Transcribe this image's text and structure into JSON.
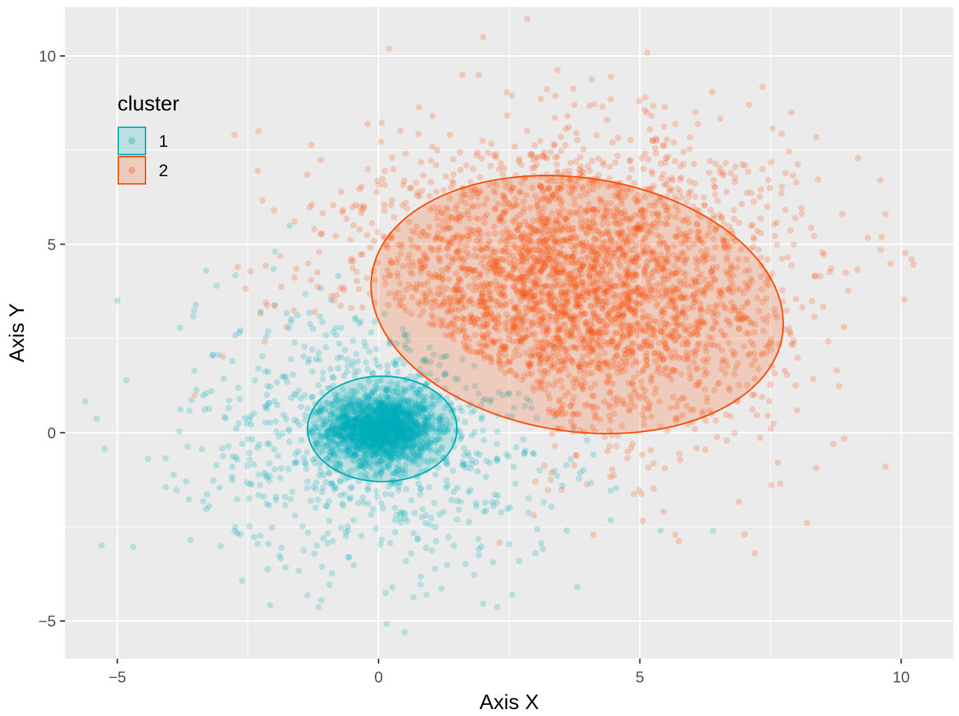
{
  "chart_data": {
    "type": "scatter",
    "title": "",
    "xlabel": "Axis X",
    "ylabel": "Axis Y",
    "xlim": [
      -6,
      11
    ],
    "ylim": [
      -6,
      11.3
    ],
    "x_ticks": [
      -5,
      0,
      5,
      10
    ],
    "y_ticks": [
      -5,
      0,
      5,
      10
    ],
    "x_tick_labels": [
      "−5",
      "0",
      "5",
      "10"
    ],
    "y_tick_labels": [
      "−5",
      "0",
      "5",
      "10"
    ],
    "grid": true,
    "legend": {
      "title": "cluster",
      "position": "top-left-inside"
    },
    "series": [
      {
        "name": "1",
        "color": "#00AFBB",
        "center": [
          0,
          0
        ],
        "approx_point_count": 2600,
        "ellipse": {
          "center": [
            0.07,
            0.1
          ],
          "semi_axis_x": 1.43,
          "semi_axis_y": 1.4,
          "rotation_deg": 0
        },
        "sample_points": [
          [
            -5.0,
            3.5
          ],
          [
            -3.5,
            3.4
          ],
          [
            -3.3,
            4.3
          ],
          [
            -3.1,
            3.9
          ],
          [
            -2.8,
            1.9
          ],
          [
            -3.2,
            1.1
          ],
          [
            -2.3,
            1.7
          ],
          [
            -1.7,
            5.5
          ],
          [
            -2.2,
            -1.7
          ],
          [
            -1.6,
            -2.2
          ],
          [
            0.5,
            -5.3
          ],
          [
            0.9,
            -2.4
          ],
          [
            3.0,
            -3.2
          ],
          [
            3.8,
            -4.1
          ],
          [
            6.4,
            -2.6
          ],
          [
            3.6,
            -2.6
          ],
          [
            5.4,
            -2.6
          ]
        ]
      },
      {
        "name": "2",
        "color": "#FC4E07",
        "center": [
          3.6,
          3.5
        ],
        "approx_point_count": 3300,
        "ellipse": {
          "center": [
            3.8,
            3.4
          ],
          "semi_axis_x": 4.05,
          "semi_axis_y": 3.3,
          "rotation_deg": -23
        },
        "sample_points": [
          [
            2.0,
            10.5
          ],
          [
            0.2,
            10.2
          ],
          [
            1.6,
            9.5
          ],
          [
            5.1,
            8.9
          ],
          [
            7.9,
            8.5
          ],
          [
            -2.3,
            8.0
          ],
          [
            -2.0,
            5.9
          ],
          [
            9.6,
            6.7
          ],
          [
            10.2,
            4.6
          ],
          [
            9.7,
            5.8
          ],
          [
            9.7,
            -0.9
          ],
          [
            8.2,
            -2.4
          ],
          [
            7.2,
            -3.2
          ],
          [
            8.7,
            -0.3
          ],
          [
            3.0,
            -1.3
          ]
        ]
      }
    ]
  }
}
